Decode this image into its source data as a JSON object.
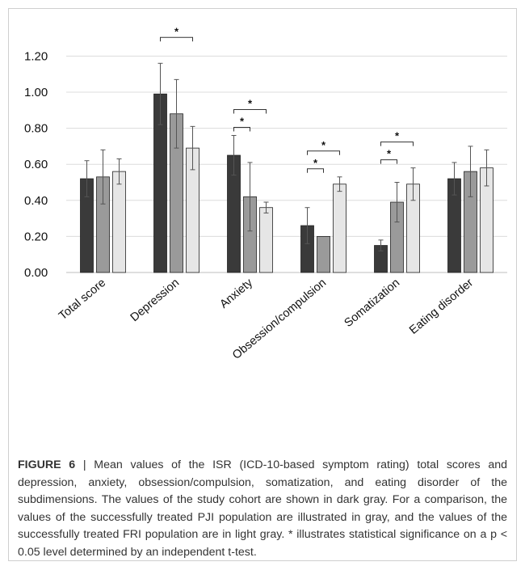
{
  "chart_data": {
    "type": "bar",
    "categories": [
      "Total score",
      "Depression",
      "Anxiety",
      "Obsession/compulsion",
      "Somatization",
      "Eating disorder"
    ],
    "series": [
      {
        "color": "#3a3a3a",
        "values": [
          0.52,
          0.99,
          0.65,
          0.26,
          0.15,
          0.52
        ],
        "errors": [
          0.1,
          0.17,
          0.11,
          0.1,
          0.03,
          0.09
        ]
      },
      {
        "color": "#9a9a9a",
        "values": [
          0.53,
          0.88,
          0.42,
          0.2,
          0.39,
          0.56
        ],
        "errors": [
          0.15,
          0.19,
          0.19,
          0.0,
          0.11,
          0.14
        ]
      },
      {
        "color": "#e6e6e6",
        "values": [
          0.56,
          0.69,
          0.36,
          0.49,
          0.49,
          0.58
        ],
        "errors": [
          0.07,
          0.12,
          0.03,
          0.04,
          0.09,
          0.1
        ]
      }
    ],
    "significance": [
      {
        "category": 1,
        "from": 0,
        "to": 2,
        "level": 1,
        "label": "*"
      },
      {
        "category": 2,
        "from": 0,
        "to": 1,
        "level": 0,
        "label": "*"
      },
      {
        "category": 2,
        "from": 0,
        "to": 2,
        "level": 1,
        "label": "*"
      },
      {
        "category": 3,
        "from": 0,
        "to": 1,
        "level": 0,
        "label": "*"
      },
      {
        "category": 3,
        "from": 0,
        "to": 2,
        "level": 1,
        "label": "*"
      },
      {
        "category": 4,
        "from": 0,
        "to": 1,
        "level": 0,
        "label": "*"
      },
      {
        "category": 4,
        "from": 0,
        "to": 2,
        "level": 1,
        "label": "*"
      }
    ],
    "yticks": [
      0.0,
      0.2,
      0.4,
      0.6,
      0.8,
      1.0,
      1.2
    ],
    "ytick_labels": [
      "0.00",
      "0.20",
      "0.40",
      "0.60",
      "0.80",
      "1.00",
      "1.20"
    ],
    "ylim": [
      0,
      1.26
    ],
    "grid": true,
    "legend": "none"
  },
  "caption": {
    "label": "FIGURE 6",
    "separator": " | ",
    "text": "Mean values of the ISR (ICD-10-based symptom rating) total scores and depression, anxiety, obsession/compulsion, somatization, and eating disorder of the subdimensions. The values of the study cohort are shown in dark gray. For a comparison, the values of the successfully treated PJI population are illustrated in gray, and the values of the successfully treated FRI population are in light gray. * illustrates statistical significance on a p < 0.05 level determined by an independent t-test."
  }
}
